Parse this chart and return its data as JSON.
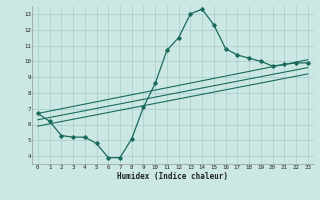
{
  "xlabel": "Humidex (Indice chaleur)",
  "bg_color": "#cce8e4",
  "grid_color": "#aacccc",
  "line_color": "#1a6b5a",
  "xlim": [
    -0.5,
    23.5
  ],
  "ylim": [
    3.5,
    13.5
  ],
  "xticks": [
    0,
    1,
    2,
    3,
    4,
    5,
    6,
    7,
    8,
    9,
    10,
    11,
    12,
    13,
    14,
    15,
    16,
    17,
    18,
    19,
    20,
    21,
    22,
    23
  ],
  "yticks": [
    4,
    5,
    6,
    7,
    8,
    9,
    10,
    11,
    12,
    13
  ],
  "main_x": [
    0,
    1,
    2,
    3,
    4,
    5,
    6,
    7,
    8,
    9,
    10,
    11,
    12,
    13,
    14,
    15,
    16,
    17,
    18,
    19,
    20,
    21,
    22,
    23
  ],
  "main_y": [
    6.7,
    6.2,
    5.3,
    5.2,
    5.2,
    4.8,
    3.9,
    3.9,
    5.1,
    7.1,
    8.6,
    10.7,
    11.5,
    13.0,
    13.3,
    12.3,
    10.8,
    10.4,
    10.2,
    10.0,
    9.7,
    9.8,
    9.9,
    9.9
  ],
  "line2_x": [
    0,
    23
  ],
  "line2_y": [
    6.7,
    10.1
  ],
  "line3_x": [
    0,
    23
  ],
  "line3_y": [
    6.3,
    9.6
  ],
  "line4_x": [
    0,
    23
  ],
  "line4_y": [
    5.9,
    9.2
  ]
}
